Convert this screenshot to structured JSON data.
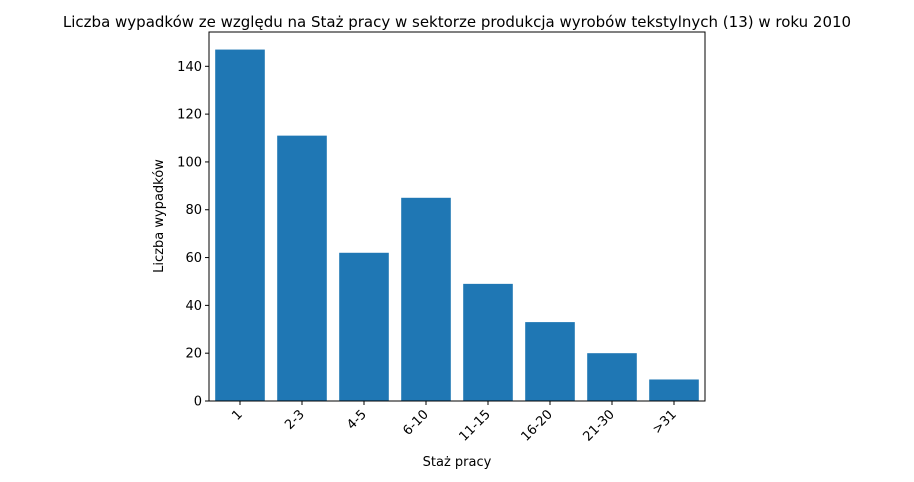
{
  "chart_data": {
    "type": "bar",
    "title": "Liczba wypadków ze względu na Staż pracy w sektorze produkcja wyrobów tekstylnych  (13)   w roku 2010",
    "xlabel": "Staż pracy",
    "ylabel": "Liczba wypadków",
    "categories": [
      "1",
      "2-3",
      "4-5",
      "6-10",
      "11-15",
      "16-20",
      "21-30",
      ">31"
    ],
    "values": [
      147,
      111,
      62,
      85,
      49,
      33,
      20,
      9
    ],
    "ylim": [
      0,
      154.35
    ],
    "yticks": [
      0,
      20,
      40,
      60,
      80,
      100,
      120,
      140
    ],
    "bar_color": "#1f77b4",
    "grid": false,
    "legend": "none"
  }
}
